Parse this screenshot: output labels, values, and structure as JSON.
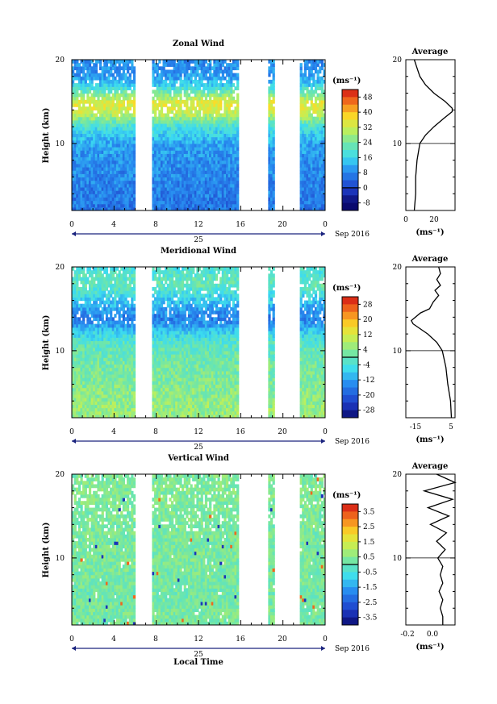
{
  "figure": {
    "time_axis_label": "Local Time",
    "date_label": "Sep 2016",
    "day_label": "25",
    "height_label": "Height (km)",
    "unit_label": "(ms⁻¹)",
    "average_title": "Average"
  },
  "chart_data": [
    {
      "type": "heatmap",
      "title": "Zonal Wind",
      "xlabel": "",
      "ylabel": "Height (km)",
      "x_ticks": [
        "0",
        "4",
        "8",
        "12",
        "16",
        "20",
        "0"
      ],
      "xlim": [
        0,
        24
      ],
      "ylim": [
        2,
        20
      ],
      "y_ticks": [
        "20",
        "10"
      ],
      "colorbar_unit": "(ms⁻¹)",
      "colorbar_ticks": [
        "48",
        "40",
        "32",
        "24",
        "16",
        "8",
        "0",
        "-8"
      ],
      "colorbar_range": [
        -8,
        52
      ],
      "data_gaps_hours": [
        [
          6.0,
          7.7
        ],
        [
          15.7,
          18.6
        ],
        [
          19.1,
          21.6
        ]
      ],
      "profile_by_height": [
        [
          2,
          6
        ],
        [
          4,
          7
        ],
        [
          6,
          8
        ],
        [
          8,
          9
        ],
        [
          10,
          11
        ],
        [
          12,
          18
        ],
        [
          13,
          26
        ],
        [
          14,
          33
        ],
        [
          15,
          34
        ],
        [
          16,
          24
        ],
        [
          17,
          15
        ],
        [
          18,
          10
        ],
        [
          19,
          9
        ],
        [
          20,
          9
        ]
      ],
      "average_profile": {
        "xlabel": "(ms⁻¹)",
        "x_ticks": [
          "0",
          "20"
        ],
        "xlim": [
          0,
          35
        ],
        "y_ticks": [
          "20",
          "10"
        ],
        "points": [
          [
            6,
            2
          ],
          [
            7,
            4
          ],
          [
            7,
            6
          ],
          [
            8,
            8
          ],
          [
            10,
            10
          ],
          [
            14,
            11
          ],
          [
            20,
            12
          ],
          [
            27,
            13
          ],
          [
            33,
            13.8
          ],
          [
            33,
            14.2
          ],
          [
            28,
            15
          ],
          [
            20,
            16
          ],
          [
            14,
            17
          ],
          [
            10,
            18
          ],
          [
            8,
            19
          ],
          [
            6,
            20
          ]
        ]
      }
    },
    {
      "type": "heatmap",
      "title": "Meridional Wind",
      "xlabel": "",
      "ylabel": "Height (km)",
      "x_ticks": [
        "0",
        "4",
        "8",
        "12",
        "16",
        "20",
        "0"
      ],
      "xlim": [
        0,
        24
      ],
      "ylim": [
        2,
        20
      ],
      "y_ticks": [
        "20",
        "10"
      ],
      "colorbar_unit": "(ms⁻¹)",
      "colorbar_ticks": [
        "28",
        "20",
        "12",
        "4",
        "-4",
        "-12",
        "-20",
        "-28"
      ],
      "colorbar_range": [
        -32,
        32
      ],
      "data_gaps_hours": [
        [
          6.0,
          7.7
        ],
        [
          15.7,
          18.6
        ],
        [
          19.1,
          21.6
        ]
      ],
      "profile_by_height": [
        [
          2,
          6
        ],
        [
          4,
          5
        ],
        [
          6,
          3
        ],
        [
          8,
          2
        ],
        [
          10,
          0
        ],
        [
          11,
          -2
        ],
        [
          12,
          -6
        ],
        [
          13,
          -12
        ],
        [
          14,
          -16
        ],
        [
          15,
          -12
        ],
        [
          16,
          -8
        ],
        [
          17,
          -4
        ],
        [
          18,
          0
        ],
        [
          19,
          -2
        ],
        [
          20,
          -4
        ]
      ],
      "average_profile": {
        "xlabel": "(ms⁻¹)",
        "x_ticks": [
          "-15",
          "5"
        ],
        "xlim": [
          -20,
          7
        ],
        "y_ticks": [
          "20",
          "10"
        ],
        "points": [
          [
            5,
            2
          ],
          [
            4.5,
            4
          ],
          [
            3,
            6
          ],
          [
            2,
            8
          ],
          [
            0,
            10
          ],
          [
            -3,
            11
          ],
          [
            -8,
            12
          ],
          [
            -16,
            13.2
          ],
          [
            -17,
            13.6
          ],
          [
            -12,
            14.5
          ],
          [
            -7,
            15
          ],
          [
            -5,
            15.8
          ],
          [
            -2,
            16.6
          ],
          [
            -4,
            17.2
          ],
          [
            -1,
            17.8
          ],
          [
            -3,
            18.5
          ],
          [
            -1,
            19.2
          ],
          [
            -2,
            20
          ]
        ]
      }
    },
    {
      "type": "heatmap",
      "title": "Vertical Wind",
      "xlabel": "Local Time",
      "ylabel": "Height (km)",
      "x_ticks": [
        "0",
        "4",
        "8",
        "12",
        "16",
        "20",
        "0"
      ],
      "xlim": [
        0,
        24
      ],
      "ylim": [
        2,
        20
      ],
      "y_ticks": [
        "20",
        "10"
      ],
      "colorbar_unit": "(ms⁻¹)",
      "colorbar_ticks": [
        "3.5",
        "2.5",
        "1.5",
        "0.5",
        "-0.5",
        "-1.5",
        "-2.5",
        "-3.5"
      ],
      "colorbar_range": [
        -4,
        4
      ],
      "data_gaps_hours": [
        [
          6.0,
          7.7
        ],
        [
          15.7,
          18.6
        ],
        [
          19.1,
          21.6
        ]
      ],
      "profile_by_height": [
        [
          2,
          0.3
        ],
        [
          6,
          0.2
        ],
        [
          10,
          0.3
        ],
        [
          14,
          0.3
        ],
        [
          18,
          0.4
        ],
        [
          20,
          0.3
        ]
      ],
      "average_profile": {
        "xlabel": "(ms⁻¹)",
        "x_ticks": [
          "-0.2",
          "0.0"
        ],
        "xlim": [
          -0.3,
          0.1
        ],
        "y_ticks": [
          "20",
          "10"
        ],
        "points": [
          [
            0.0,
            2
          ],
          [
            0.0,
            3
          ],
          [
            -0.02,
            4
          ],
          [
            0.0,
            5
          ],
          [
            -0.03,
            6
          ],
          [
            0.0,
            7
          ],
          [
            -0.02,
            8
          ],
          [
            0.0,
            9
          ],
          [
            -0.04,
            10
          ],
          [
            0.02,
            11
          ],
          [
            -0.05,
            12
          ],
          [
            0.03,
            13
          ],
          [
            -0.1,
            14
          ],
          [
            0.05,
            15
          ],
          [
            -0.12,
            16
          ],
          [
            0.08,
            17
          ],
          [
            -0.15,
            18
          ],
          [
            0.1,
            19
          ],
          [
            -0.05,
            20
          ]
        ]
      }
    }
  ]
}
